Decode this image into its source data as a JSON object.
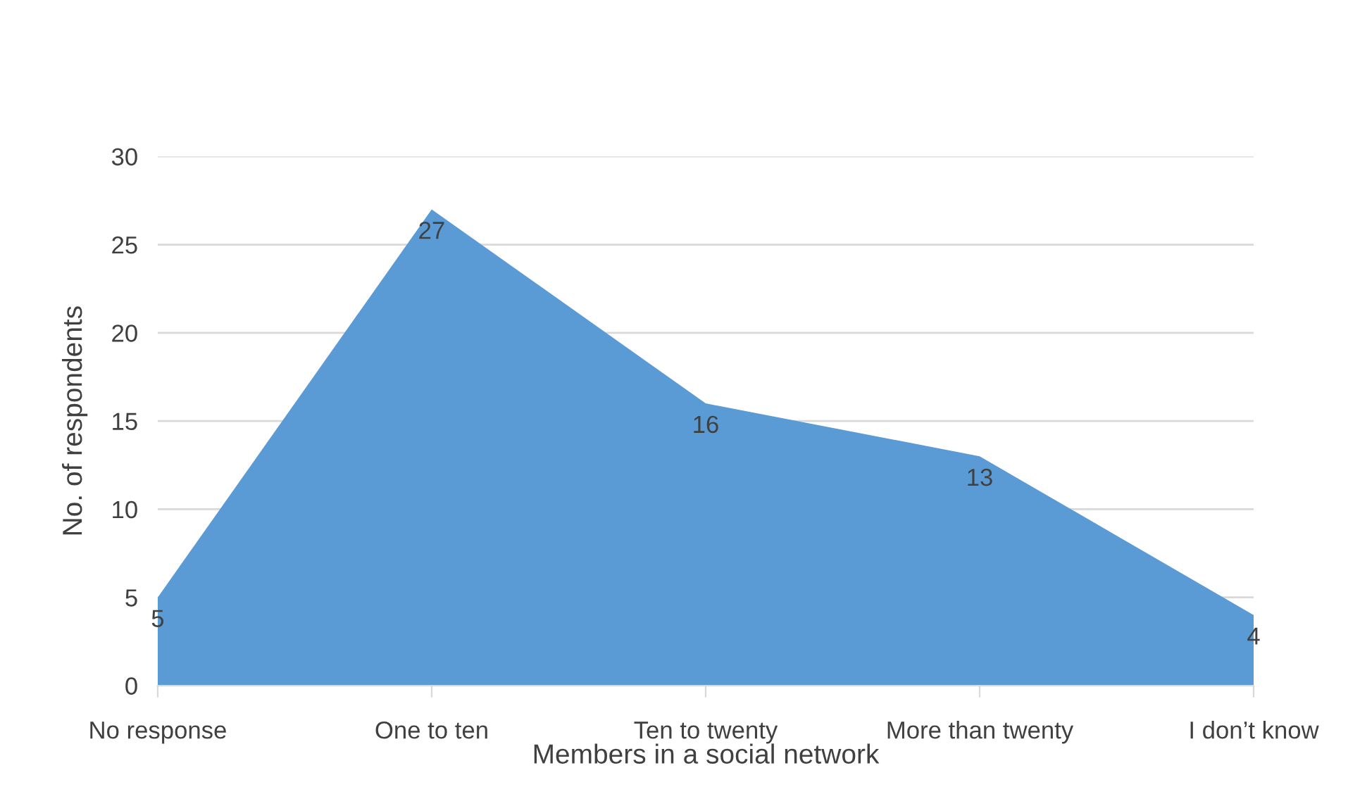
{
  "chart_data": {
    "type": "area",
    "xlabel": "Members in a social network",
    "ylabel": "No. of respondents",
    "categories": [
      "No response",
      "One to ten",
      "Ten to twenty",
      "More than twenty",
      "I don’t know"
    ],
    "values": [
      5,
      27,
      16,
      13,
      4
    ],
    "color": "#5b9bd5",
    "ylim": [
      0,
      30
    ],
    "yticks": [
      0,
      5,
      10,
      15,
      20,
      25,
      30
    ],
    "grid": "y",
    "data_labels": true,
    "legend": false
  }
}
